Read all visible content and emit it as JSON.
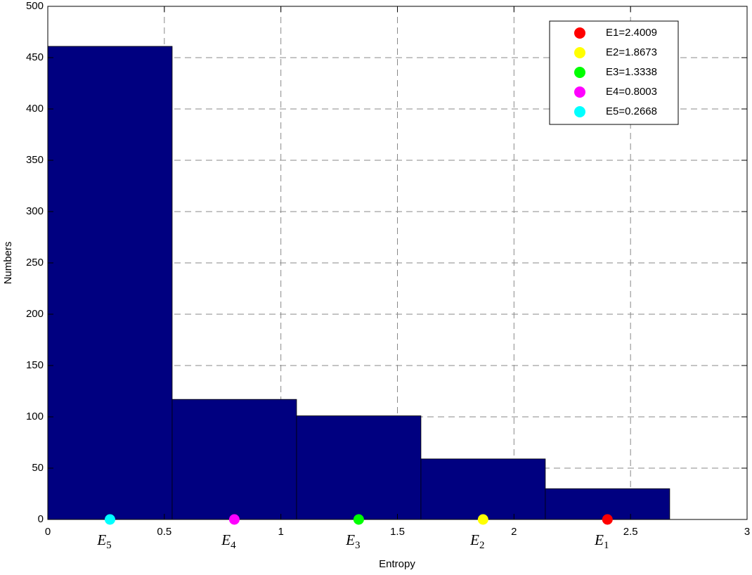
{
  "chart_data": {
    "type": "histogram",
    "xlabel": "Entropy",
    "ylabel": "Numbers",
    "bins": [
      0,
      0.5336,
      1.0672,
      1.6008,
      2.1344,
      2.668
    ],
    "values": [
      461,
      117,
      101,
      59,
      30
    ],
    "color": "#000080",
    "xlim": [
      0,
      3
    ],
    "xticks": [
      0,
      0.5,
      1,
      1.5,
      2,
      2.5,
      3
    ],
    "ylim": [
      0,
      500
    ],
    "yticks": [
      0,
      50,
      100,
      150,
      200,
      250,
      300,
      350,
      400,
      450,
      500
    ],
    "grid": true,
    "legend": "upper-right",
    "series": [
      {
        "name": "E1=2.4009",
        "color": "#ff0000",
        "x": [
          2.4009
        ],
        "values": [
          0
        ],
        "label": {
          "base": "E",
          "sub": "1"
        }
      },
      {
        "name": "E2=1.8673",
        "color": "#ffff00",
        "x": [
          1.8673
        ],
        "values": [
          0
        ],
        "label": {
          "base": "E",
          "sub": "2"
        }
      },
      {
        "name": "E3=1.3338",
        "color": "#00ff00",
        "x": [
          1.3338
        ],
        "values": [
          0
        ],
        "label": {
          "base": "E",
          "sub": "3"
        }
      },
      {
        "name": "E4=0.8003",
        "color": "#ff00ff",
        "x": [
          0.8003
        ],
        "values": [
          0
        ],
        "label": {
          "base": "E",
          "sub": "4"
        }
      },
      {
        "name": "E5=0.2668",
        "color": "#00ffff",
        "x": [
          0.2668
        ],
        "values": [
          0
        ],
        "label": {
          "base": "E",
          "sub": "5"
        }
      }
    ]
  }
}
